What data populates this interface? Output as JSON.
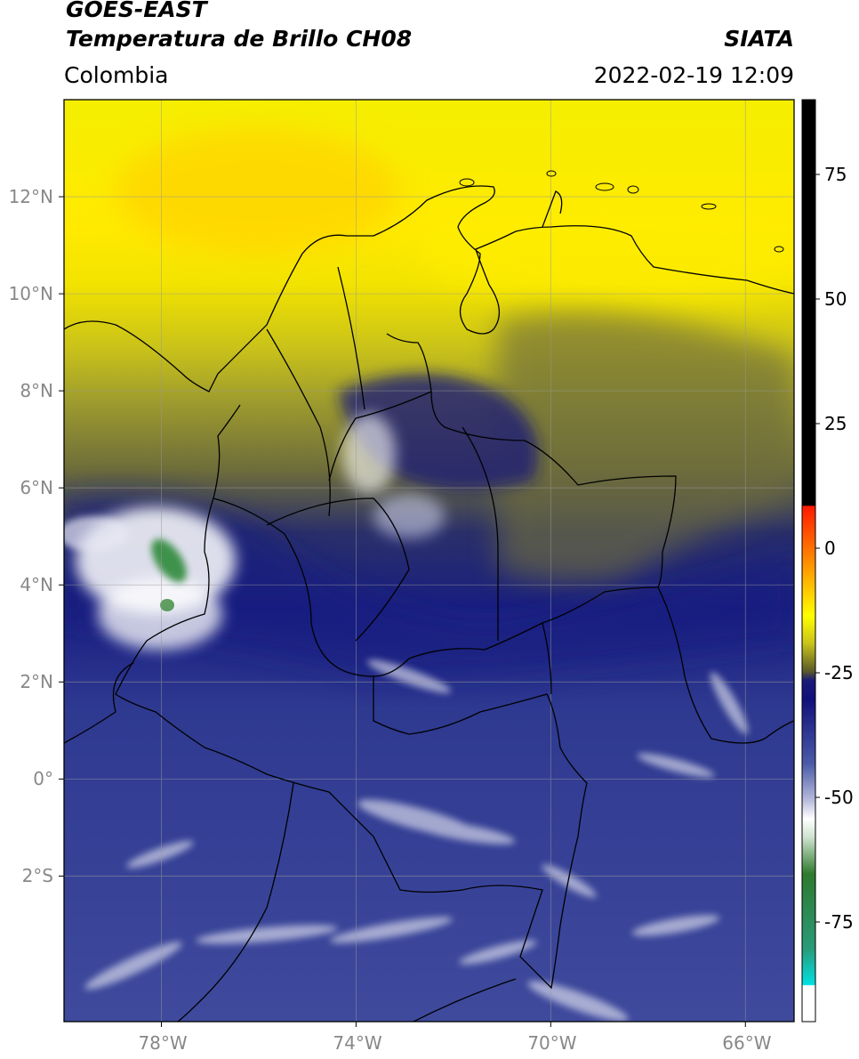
{
  "header": {
    "satellite": "GOES-EAST",
    "product": "Temperatura de Brillo CH08",
    "agency": "SIATA",
    "region": "Colombia",
    "datetime": "2022-02-19 12:09"
  },
  "map": {
    "lon_range": [
      -80,
      -65
    ],
    "lat_range": [
      -5,
      14
    ],
    "lat_ticks": [
      {
        "value": 12,
        "label": "12°N"
      },
      {
        "value": 10,
        "label": "10°N"
      },
      {
        "value": 8,
        "label": "8°N"
      },
      {
        "value": 6,
        "label": "6°N"
      },
      {
        "value": 4,
        "label": "4°N"
      },
      {
        "value": 2,
        "label": "2°N"
      },
      {
        "value": 0,
        "label": "0°"
      },
      {
        "value": -2,
        "label": "2°S"
      }
    ],
    "lon_ticks": [
      {
        "value": -78,
        "label": "78°W"
      },
      {
        "value": -74,
        "label": "74°W"
      },
      {
        "value": -70,
        "label": "70°W"
      },
      {
        "value": -66,
        "label": "66°W"
      }
    ],
    "gridlines": true
  },
  "colorbar": {
    "range": [
      -95,
      90
    ],
    "tick_values": [
      75,
      50,
      25,
      0,
      -25,
      -50,
      -75
    ],
    "tick_labels": [
      "75",
      "50",
      "25",
      "0",
      "-25",
      "-50",
      "-75"
    ],
    "colors": {
      "black": "#000000",
      "red": "#ff2a00",
      "orange": "#ff9a00",
      "yellow": "#ffff00",
      "olive": "#5a5a2a",
      "navy": "#10107a",
      "blue": "#4a5aa8",
      "white": "#ffffff",
      "green": "#2e7a2e",
      "cyan": "#00d5d5"
    }
  }
}
